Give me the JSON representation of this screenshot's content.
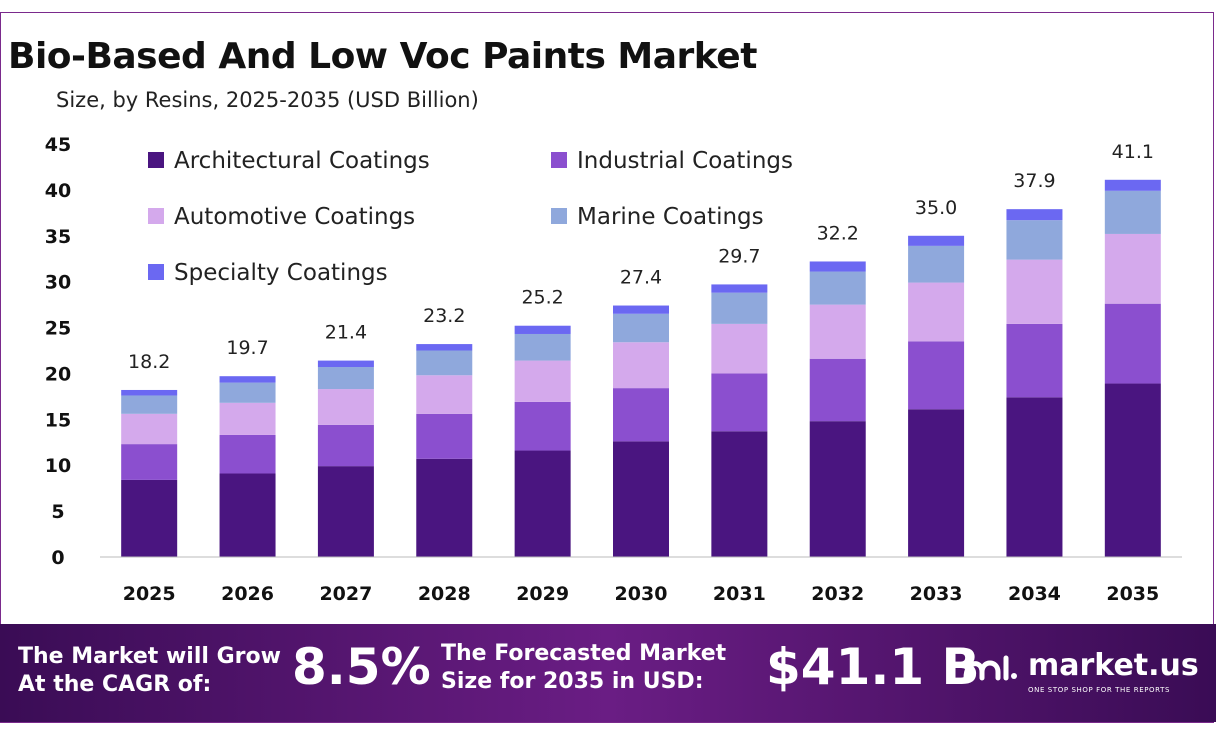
{
  "header": {
    "title": "Bio-Based And Low Voc Paints Market",
    "subtitle": "Size, by Resins, 2025-2035 (USD Billion)"
  },
  "colors": {
    "Architectural Coatings": "#4a1580",
    "Industrial Coatings": "#8b4fcf",
    "Automotive Coatings": "#d4a9ec",
    "Marine Coatings": "#8fa8dc",
    "Specialty Coatings": "#6b68f2"
  },
  "chart_data": {
    "type": "bar",
    "stacked": true,
    "title": "Bio-Based And Low Voc Paints Market",
    "subtitle": "Size, by Resins, 2025-2035 (USD Billion)",
    "categories": [
      "2025",
      "2026",
      "2027",
      "2028",
      "2029",
      "2030",
      "2031",
      "2032",
      "2033",
      "2034",
      "2035"
    ],
    "series": [
      {
        "name": "Architectural Coatings",
        "values": [
          8.4,
          9.1,
          9.9,
          10.7,
          11.6,
          12.6,
          13.7,
          14.8,
          16.1,
          17.4,
          18.9
        ]
      },
      {
        "name": "Industrial Coatings",
        "values": [
          3.9,
          4.2,
          4.5,
          4.9,
          5.3,
          5.8,
          6.3,
          6.8,
          7.4,
          8.0,
          8.7
        ]
      },
      {
        "name": "Automotive Coatings",
        "values": [
          3.3,
          3.5,
          3.9,
          4.2,
          4.5,
          5.0,
          5.4,
          5.9,
          6.4,
          7.0,
          7.6
        ]
      },
      {
        "name": "Marine Coatings",
        "values": [
          2.0,
          2.2,
          2.4,
          2.7,
          2.9,
          3.1,
          3.4,
          3.6,
          4.0,
          4.3,
          4.7
        ]
      },
      {
        "name": "Specialty Coatings",
        "values": [
          0.6,
          0.7,
          0.7,
          0.7,
          0.9,
          0.9,
          0.9,
          1.1,
          1.1,
          1.2,
          1.2
        ]
      }
    ],
    "totals": [
      "18.2",
      "19.7",
      "21.4",
      "23.2",
      "25.2",
      "27.4",
      "29.7",
      "32.2",
      "35.0",
      "37.9",
      "41.1"
    ],
    "ylim": [
      0,
      45
    ],
    "yticks": [
      0,
      5,
      10,
      15,
      20,
      25,
      30,
      35,
      40,
      45
    ],
    "grid": false,
    "legend": "top-left"
  },
  "banner": {
    "cagr_line1": "The Market will Grow",
    "cagr_line2": "At the CAGR of:",
    "cagr_value": "8.5%",
    "forecast_line1": "The Forecasted Market",
    "forecast_line2": "Size for 2035 in USD:",
    "forecast_value": "$41.1 B",
    "logo_name": "market.us",
    "logo_tagline": "ONE STOP SHOP FOR THE REPORTS"
  }
}
